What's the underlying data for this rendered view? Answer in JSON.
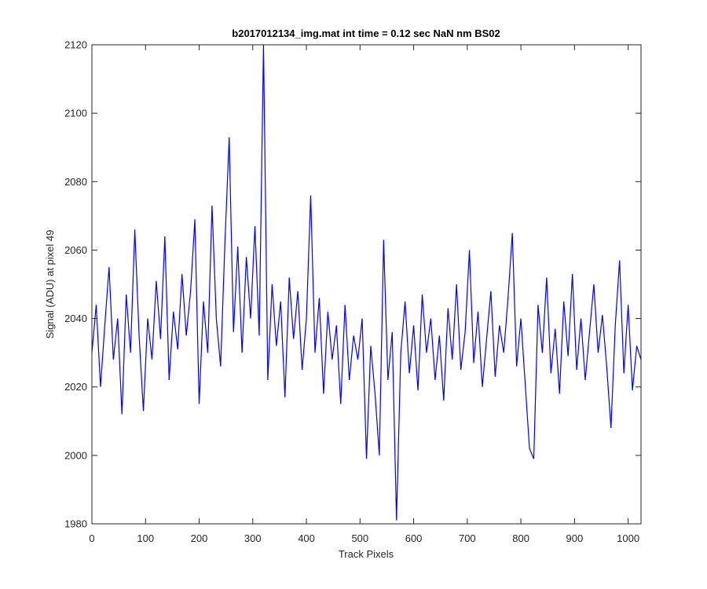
{
  "chart_data": {
    "type": "line",
    "title": "b2017012134_img.mat int time = 0.12 sec  NaN nm BS02",
    "xlabel": "Track Pixels",
    "ylabel": "Signal (ADU) at pixel 49",
    "color": "#0000ff",
    "xlim": [
      0,
      1024
    ],
    "ylim": [
      1980,
      2120
    ],
    "xticks": [
      0,
      100,
      200,
      300,
      400,
      500,
      600,
      700,
      800,
      900,
      1000
    ],
    "yticks": [
      1980,
      2000,
      2020,
      2040,
      2060,
      2080,
      2100,
      2120
    ],
    "x": [
      0,
      8,
      16,
      24,
      32,
      40,
      48,
      56,
      64,
      72,
      80,
      88,
      96,
      104,
      112,
      120,
      128,
      136,
      144,
      152,
      160,
      168,
      176,
      184,
      192,
      200,
      208,
      216,
      224,
      232,
      240,
      248,
      256,
      264,
      272,
      280,
      288,
      296,
      304,
      312,
      320,
      328,
      336,
      344,
      352,
      360,
      368,
      376,
      384,
      392,
      400,
      408,
      416,
      424,
      432,
      440,
      448,
      456,
      464,
      472,
      480,
      488,
      496,
      504,
      512,
      520,
      528,
      536,
      544,
      552,
      560,
      568,
      576,
      584,
      592,
      600,
      608,
      616,
      624,
      632,
      640,
      648,
      656,
      664,
      672,
      680,
      688,
      696,
      704,
      712,
      720,
      728,
      736,
      744,
      752,
      760,
      768,
      776,
      784,
      792,
      800,
      808,
      816,
      824,
      832,
      840,
      848,
      856,
      864,
      872,
      880,
      888,
      896,
      904,
      912,
      920,
      928,
      936,
      944,
      952,
      960,
      968,
      976,
      984,
      992,
      1000,
      1008,
      1016,
      1024
    ],
    "values": [
      2030,
      2044,
      2020,
      2038,
      2055,
      2028,
      2040,
      2012,
      2047,
      2030,
      2066,
      2035,
      2013,
      2040,
      2028,
      2051,
      2034,
      2064,
      2022,
      2042,
      2031,
      2053,
      2035,
      2048,
      2069,
      2015,
      2045,
      2030,
      2073,
      2040,
      2026,
      2062,
      2093,
      2036,
      2061,
      2030,
      2058,
      2040,
      2067,
      2035,
      2120,
      2022,
      2050,
      2032,
      2045,
      2017,
      2052,
      2034,
      2048,
      2025,
      2040,
      2076,
      2030,
      2046,
      2018,
      2042,
      2028,
      2038,
      2015,
      2044,
      2022,
      2035,
      2028,
      2040,
      1999,
      2032,
      2018,
      2000,
      2063,
      2022,
      2036,
      1981,
      2030,
      2045,
      2024,
      2038,
      2019,
      2047,
      2030,
      2040,
      2022,
      2035,
      2016,
      2043,
      2028,
      2050,
      2025,
      2036,
      2060,
      2027,
      2042,
      2020,
      2034,
      2048,
      2023,
      2038,
      2030,
      2046,
      2065,
      2026,
      2040,
      2021,
      2002,
      1999,
      2044,
      2030,
      2052,
      2024,
      2037,
      2018,
      2045,
      2029,
      2053,
      2025,
      2040,
      2022,
      2036,
      2050,
      2030,
      2041,
      2026,
      2008,
      2038,
      2057,
      2024,
      2044,
      2019,
      2032,
      2028
    ]
  }
}
